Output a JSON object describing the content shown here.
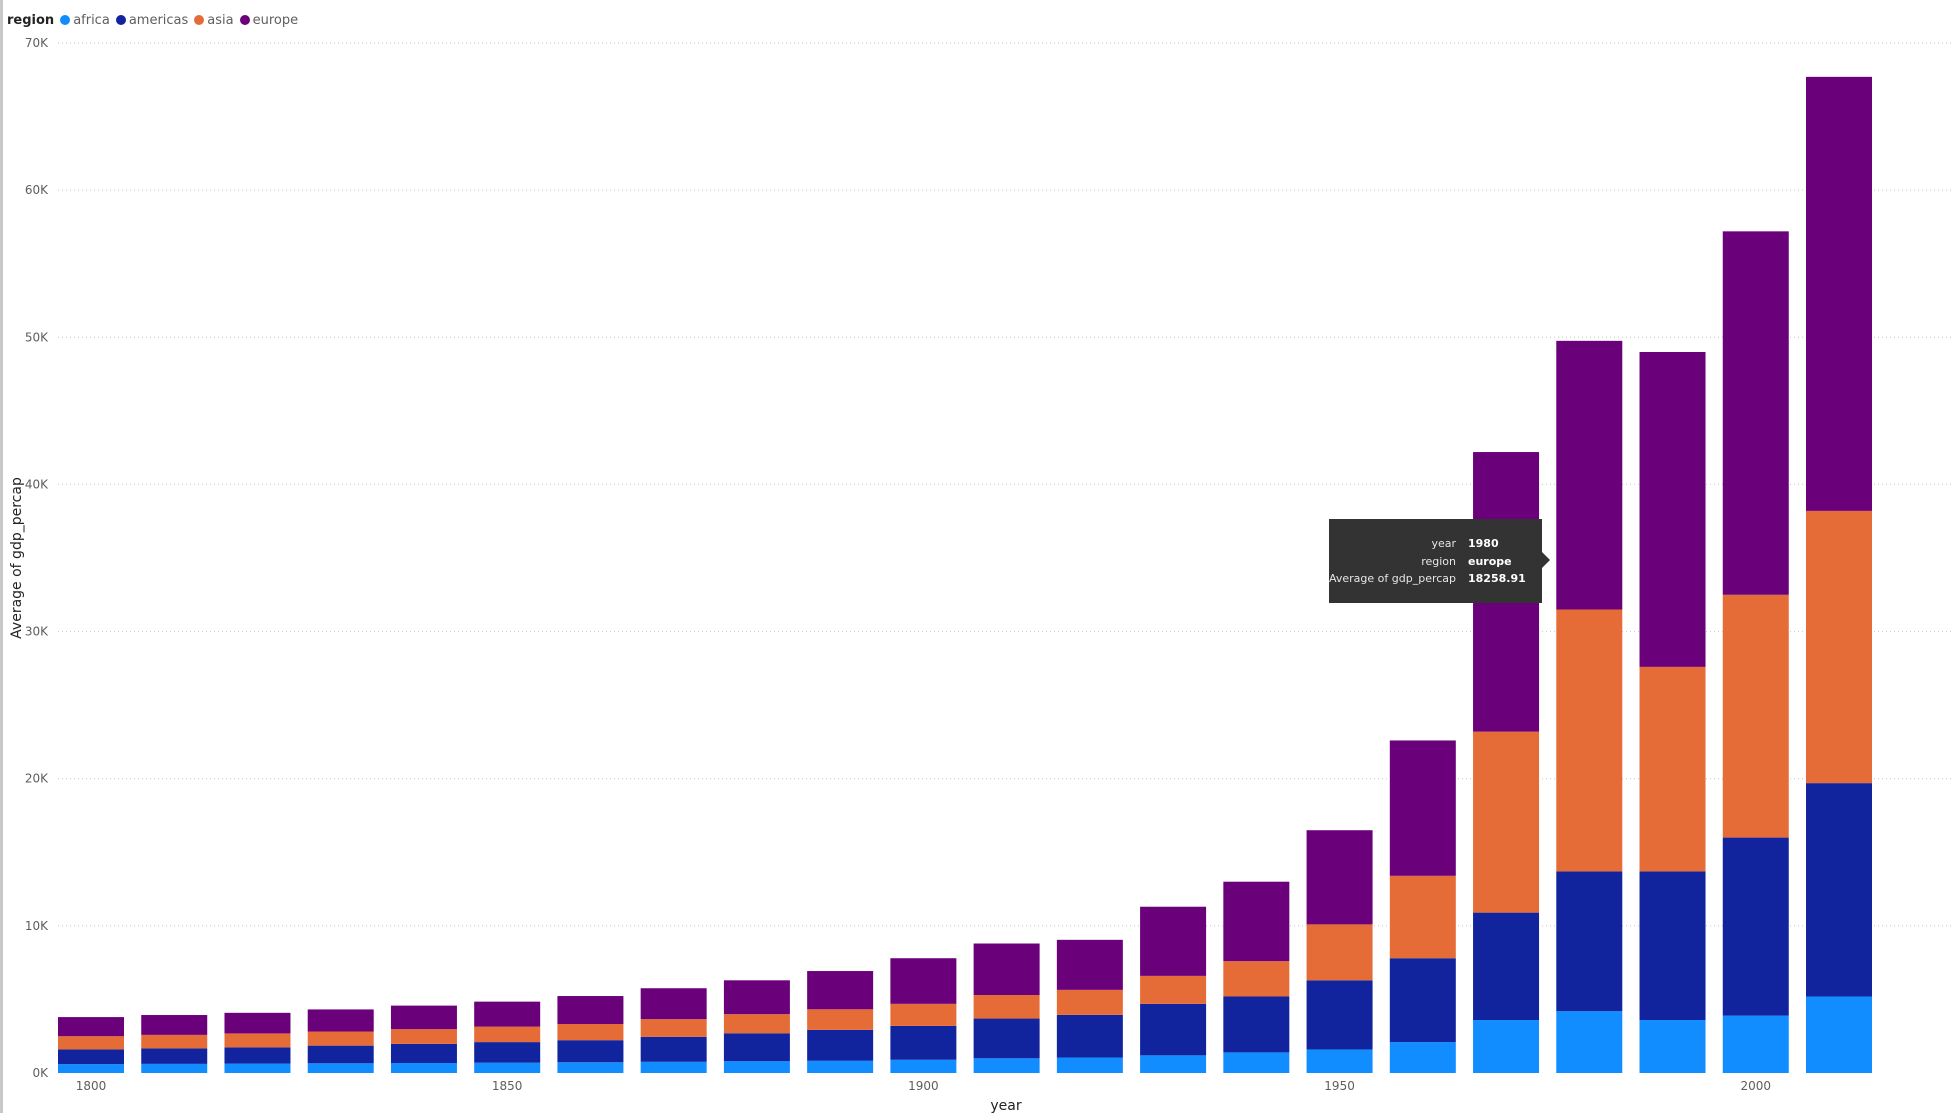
{
  "chart_data": {
    "type": "bar",
    "stacked": true,
    "legend": {
      "title": "region",
      "position": "top-left"
    },
    "xlabel": "year",
    "ylabel": "Average of gdp_percap",
    "ylim": [
      0,
      70000
    ],
    "yticks": [
      "0K",
      "10K",
      "20K",
      "30K",
      "40K",
      "50K",
      "60K",
      "70K"
    ],
    "xticks": [
      {
        "year": 1800,
        "label": "1800"
      },
      {
        "year": 1850,
        "label": "1850"
      },
      {
        "year": 1900,
        "label": "1900"
      },
      {
        "year": 1950,
        "label": "1950"
      },
      {
        "year": 2000,
        "label": "2000"
      }
    ],
    "grid": {
      "horizontal": true,
      "vertical": false
    },
    "categories": [
      1800,
      1810,
      1820,
      1830,
      1840,
      1850,
      1860,
      1870,
      1880,
      1890,
      1900,
      1910,
      1920,
      1930,
      1940,
      1950,
      1960,
      1970,
      1980,
      1990,
      2000,
      2010
    ],
    "series": [
      {
        "name": "africa",
        "color": "#118dff",
        "values": [
          600,
          620,
          640,
          660,
          680,
          700,
          730,
          760,
          800,
          830,
          900,
          1000,
          1050,
          1200,
          1400,
          1600,
          2100,
          3600,
          4200,
          3600,
          3900,
          5200
        ]
      },
      {
        "name": "americas",
        "color": "#12239e",
        "values": [
          1000,
          1050,
          1100,
          1200,
          1300,
          1400,
          1500,
          1700,
          1900,
          2100,
          2300,
          2700,
          2900,
          3500,
          3800,
          4700,
          5700,
          7300,
          9500,
          10100,
          12100,
          14500
        ]
      },
      {
        "name": "asia",
        "color": "#e66c37",
        "values": [
          900,
          920,
          950,
          960,
          1000,
          1050,
          1100,
          1200,
          1300,
          1400,
          1500,
          1600,
          1700,
          1900,
          2400,
          3800,
          5600,
          12300,
          17800,
          13900,
          16500,
          18500
        ]
      },
      {
        "name": "europe",
        "color": "#6b007b",
        "values": [
          1300,
          1350,
          1400,
          1500,
          1600,
          1700,
          1900,
          2100,
          2300,
          2600,
          3100,
          3500,
          3400,
          4700,
          5400,
          6400,
          9200,
          19000,
          18258.91,
          21400,
          24700,
          29500
        ]
      }
    ],
    "tooltip": {
      "rows": [
        {
          "key": "year",
          "value": "1980"
        },
        {
          "key": "region",
          "value": "europe"
        },
        {
          "key": "Average of gdp_percap",
          "value": "18258.91"
        }
      ]
    }
  }
}
